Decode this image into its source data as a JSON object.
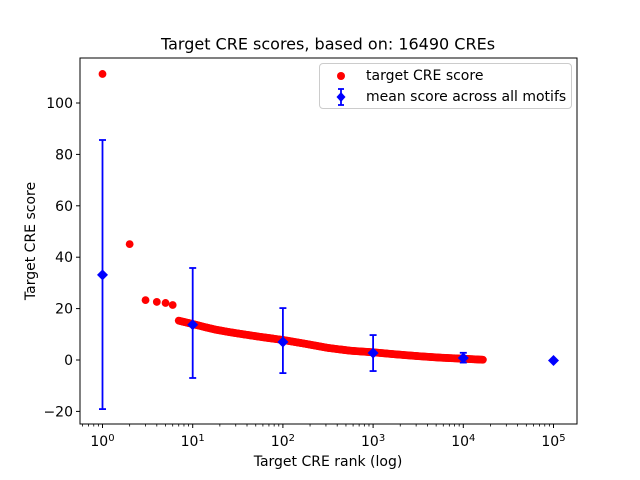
{
  "chart_data": {
    "type": "scatter",
    "title": "Target CRE scores, based on: 16490 CREs",
    "xlabel": "Target CRE rank (log)",
    "ylabel": "Target CRE score",
    "x_scale": "log",
    "xlim_log10": [
      -0.25,
      5.26
    ],
    "ylim": [
      -24.9,
      117.5
    ],
    "grid": false,
    "x_ticks": [
      {
        "log10": 0,
        "base": "10",
        "exp": "0"
      },
      {
        "log10": 1,
        "base": "10",
        "exp": "1"
      },
      {
        "log10": 2,
        "base": "10",
        "exp": "2"
      },
      {
        "log10": 3,
        "base": "10",
        "exp": "3"
      },
      {
        "log10": 4,
        "base": "10",
        "exp": "4"
      },
      {
        "log10": 5,
        "base": "10",
        "exp": "5"
      }
    ],
    "y_ticks": [
      {
        "value": -20,
        "label": "−20"
      },
      {
        "value": 0,
        "label": "0"
      },
      {
        "value": 20,
        "label": "20"
      },
      {
        "value": 40,
        "label": "40"
      },
      {
        "value": 60,
        "label": "60"
      },
      {
        "value": 80,
        "label": "80"
      },
      {
        "value": 100,
        "label": "100"
      }
    ],
    "legend": {
      "position": "upper right",
      "entries": [
        {
          "label": "target CRE score",
          "marker": "circle",
          "color": "#ff0000"
        },
        {
          "label": "mean score across all motifs",
          "marker": "diamond-errorbar",
          "color": "#0000ff"
        }
      ]
    },
    "series": [
      {
        "name": "target CRE score",
        "marker": "circle",
        "color": "#ff0000",
        "points": [
          [
            1,
            111.3
          ],
          [
            2,
            45.1
          ],
          [
            3,
            23.3
          ],
          [
            4,
            22.6
          ],
          [
            5,
            22.2
          ],
          [
            6,
            21.4
          ]
        ],
        "curve_anchors": [
          [
            7,
            15.3
          ],
          [
            10,
            14.0
          ],
          [
            14,
            12.7
          ],
          [
            18,
            11.8
          ],
          [
            25,
            10.9
          ],
          [
            32,
            10.3
          ],
          [
            56,
            9.0
          ],
          [
            100,
            7.8
          ],
          [
            178,
            6.3
          ],
          [
            316,
            4.7
          ],
          [
            562,
            3.6
          ],
          [
            1000,
            3.0
          ],
          [
            1778,
            2.2
          ],
          [
            3162,
            1.5
          ],
          [
            5623,
            0.9
          ],
          [
            10000,
            0.5
          ],
          [
            16490,
            0.1
          ]
        ],
        "curve_points_generated": 320
      },
      {
        "name": "mean score across all motifs",
        "marker": "diamond",
        "color": "#0000ff",
        "points": [
          {
            "rank": 1,
            "mean": 33.1,
            "lo": -19.1,
            "hi": 85.6
          },
          {
            "rank": 10,
            "mean": 13.7,
            "lo": -7.0,
            "hi": 35.8
          },
          {
            "rank": 100,
            "mean": 7.0,
            "lo": -5.1,
            "hi": 20.2
          },
          {
            "rank": 1000,
            "mean": 2.7,
            "lo": -4.3,
            "hi": 9.7
          },
          {
            "rank": 10000,
            "mean": 0.8,
            "lo": -1.0,
            "hi": 2.8
          },
          {
            "rank": 100000,
            "mean": -0.2,
            "lo": null,
            "hi": null
          }
        ]
      }
    ]
  }
}
